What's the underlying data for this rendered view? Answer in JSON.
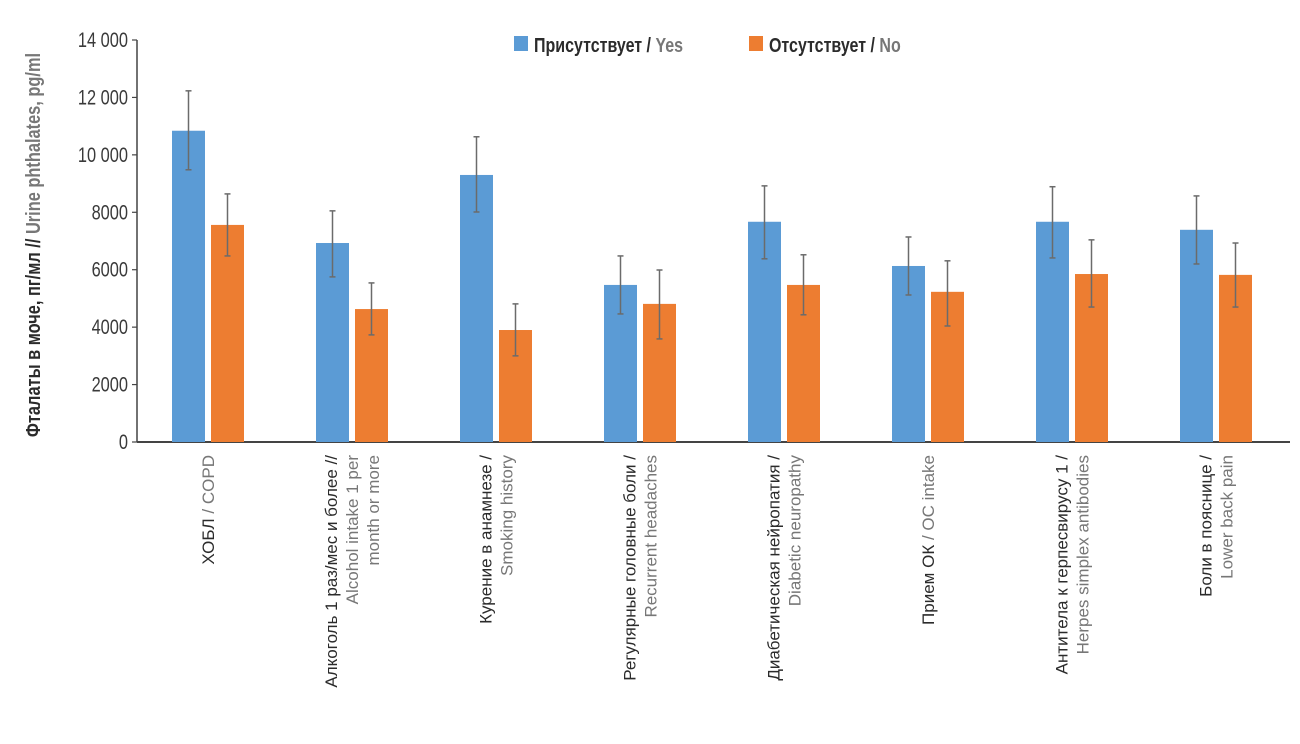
{
  "chart_data": {
    "type": "bar",
    "title": "",
    "ylabel": {
      "main": "Фталаты в моче, пг/мл //",
      "secondary": " Urine phthalates, pg/ml"
    },
    "xlabel": "",
    "ylim": [
      0,
      14000
    ],
    "yticks": [
      0,
      2000,
      4000,
      6000,
      8000,
      10000,
      12000,
      14000
    ],
    "ytick_labels": [
      "0",
      "2000",
      "4000",
      "6000",
      "8000",
      "10 000",
      "12 000",
      "14 000"
    ],
    "grid": false,
    "legend_position": "top-center",
    "categories": [
      {
        "lines": [
          [
            {
              "t": "ХОБЛ ",
              "s": "dark"
            },
            {
              "t": "/ COPD",
              "s": "gray"
            }
          ]
        ]
      },
      {
        "lines": [
          [
            {
              "t": "Алкоголь 1 раз/мес и более //",
              "s": "dark"
            }
          ],
          [
            {
              "t": "Alcohol intake 1 per",
              "s": "gray"
            }
          ],
          [
            {
              "t": "month or more",
              "s": "gray"
            }
          ]
        ]
      },
      {
        "lines": [
          [
            {
              "t": "Курение в анамнезе /",
              "s": "dark"
            }
          ],
          [
            {
              "t": "Smoking history",
              "s": "gray"
            }
          ]
        ]
      },
      {
        "lines": [
          [
            {
              "t": "Регулярные головные боли /",
              "s": "dark"
            }
          ],
          [
            {
              "t": "Recurrent headaches",
              "s": "gray"
            }
          ]
        ]
      },
      {
        "lines": [
          [
            {
              "t": "Диабетическая нейропатия /",
              "s": "dark"
            }
          ],
          [
            {
              "t": "Diabetic neuropathy",
              "s": "gray"
            }
          ]
        ]
      },
      {
        "lines": [
          [
            {
              "t": "Прием ОК ",
              "s": "dark"
            },
            {
              "t": "/ OC intake",
              "s": "gray"
            }
          ]
        ]
      },
      {
        "lines": [
          [
            {
              "t": "Антитела к герпесвирусу 1 /",
              "s": "dark"
            }
          ],
          [
            {
              "t": "Herpes simplex antibodies",
              "s": "gray"
            }
          ]
        ]
      },
      {
        "lines": [
          [
            {
              "t": "Боли в пояснице /",
              "s": "dark"
            }
          ],
          [
            {
              "t": "Lower back pain",
              "s": "gray"
            }
          ]
        ]
      }
    ],
    "series": [
      {
        "name": "Присутствует / ",
        "name_secondary": "Yes",
        "color": "#5b9bd5",
        "values": [
          10840,
          6930,
          9300,
          5470,
          7670,
          6130,
          7670,
          7390
        ],
        "error_low": [
          9480,
          5750,
          8010,
          4460,
          6380,
          5120,
          6410,
          6200
        ],
        "error_high": [
          12230,
          8050,
          10630,
          6480,
          8920,
          7140,
          8890,
          8570
        ]
      },
      {
        "name": "Отсутствует / ",
        "name_secondary": "No",
        "color": "#ed7d31",
        "values": [
          7560,
          4630,
          3900,
          4810,
          5470,
          5230,
          5850,
          5820
        ],
        "error_low": [
          6480,
          3730,
          3000,
          3590,
          4430,
          4040,
          4700,
          4700
        ],
        "error_high": [
          8640,
          5540,
          4810,
          5990,
          6520,
          6310,
          7040,
          6930
        ]
      }
    ]
  }
}
